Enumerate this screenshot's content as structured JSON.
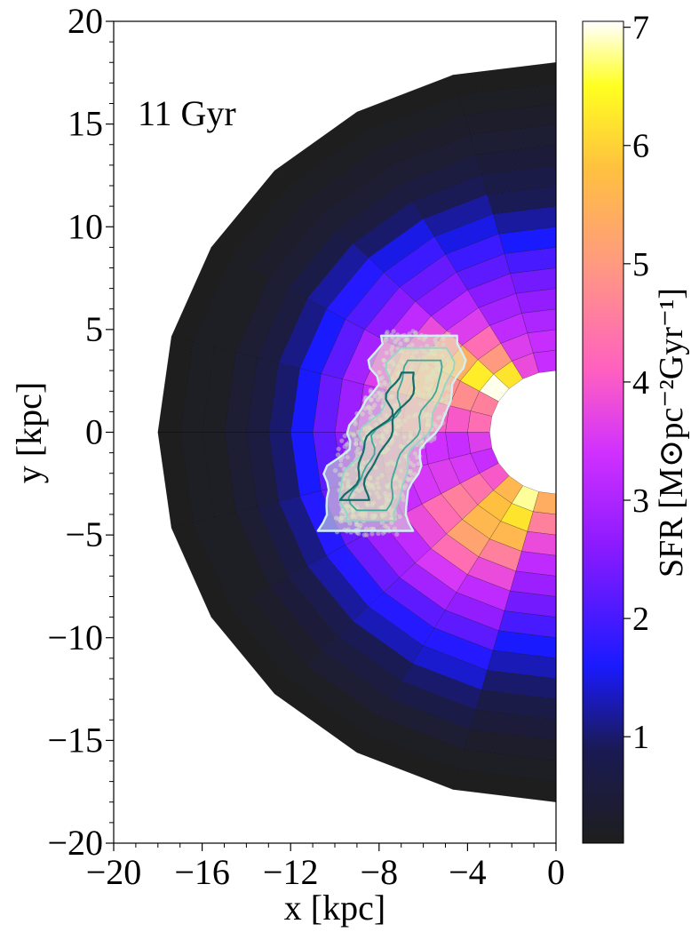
{
  "chart_data": {
    "type": "heatmap",
    "projection": "polar half-disc (left half), radial bins x azimuthal bins",
    "annotation": "11 Gyr",
    "xlabel": "x [kpc]",
    "ylabel": "y [kpc]",
    "xlim": [
      -20,
      0
    ],
    "ylim": [
      -20,
      20
    ],
    "xticks": [
      -20,
      -16,
      -12,
      -8,
      -4,
      0
    ],
    "xtick_labels": [
      "−20",
      "−16",
      "−12",
      "−8",
      "−4",
      "0"
    ],
    "yticks": [
      -20,
      -15,
      -10,
      -5,
      0,
      5,
      10,
      15,
      20
    ],
    "ytick_labels": [
      "−20",
      "−15",
      "−10",
      "−5",
      "0",
      "5",
      "10",
      "15",
      "20"
    ],
    "colorbar": {
      "label": "SFR [M⊙pc⁻²Gyr⁻¹]",
      "colormap": "gnuplot2-like",
      "range": [
        0.1,
        7.05
      ],
      "ticks": [
        1,
        2,
        3,
        4,
        5,
        6,
        7
      ],
      "tick_labels": [
        "1",
        "2",
        "3",
        "4",
        "5",
        "6",
        "7"
      ],
      "stops": [
        {
          "v": 0.1,
          "color": "#1e1e1e"
        },
        {
          "v": 0.9,
          "color": "#1a1a55"
        },
        {
          "v": 1.6,
          "color": "#1a1aff"
        },
        {
          "v": 2.6,
          "color": "#8a1aff"
        },
        {
          "v": 3.4,
          "color": "#d030ff"
        },
        {
          "v": 4.1,
          "color": "#ff60c0"
        },
        {
          "v": 5.0,
          "color": "#ff9a80"
        },
        {
          "v": 5.8,
          "color": "#ffc040"
        },
        {
          "v": 6.5,
          "color": "#ffff20"
        },
        {
          "v": 7.05,
          "color": "#ffffff"
        }
      ]
    },
    "radial_bin_edges_kpc": [
      3,
      4,
      5,
      6,
      7,
      8,
      9,
      10,
      11,
      12,
      13,
      14,
      15,
      16,
      17,
      18
    ],
    "azimuth_range_deg": [
      90,
      270
    ],
    "azimuth_bins": 12,
    "azimuth_note": "rows run azimuthally from the top (90 deg, +y axis) through 180 deg (-x axis) to the bottom (270 deg, -y axis)",
    "sfr_grid": [
      [
        3.3,
        3.8,
        6.2,
        7.0,
        4.6,
        4.3,
        3.6,
        3.3,
        4.0,
        5.6,
        6.8,
        5.4
      ],
      [
        3.3,
        3.6,
        5.0,
        6.3,
        4.8,
        4.0,
        3.3,
        3.5,
        4.4,
        5.8,
        6.2,
        4.6
      ],
      [
        3.0,
        3.2,
        4.3,
        5.4,
        4.8,
        4.0,
        3.4,
        3.6,
        4.6,
        5.6,
        5.6,
        3.8
      ],
      [
        2.7,
        2.9,
        3.6,
        4.6,
        4.6,
        3.8,
        3.4,
        3.5,
        4.3,
        5.2,
        4.6,
        3.2
      ],
      [
        2.4,
        2.6,
        3.1,
        3.8,
        4.2,
        3.6,
        3.3,
        3.3,
        3.8,
        4.3,
        3.8,
        2.8
      ],
      [
        2.0,
        2.2,
        2.6,
        3.2,
        3.6,
        3.2,
        3.0,
        3.0,
        3.2,
        3.5,
        3.2,
        2.4
      ],
      [
        1.6,
        1.9,
        2.3,
        2.6,
        2.9,
        2.8,
        2.6,
        2.7,
        2.8,
        2.9,
        2.7,
        2.0
      ],
      [
        1.2,
        1.5,
        1.9,
        2.1,
        2.2,
        2.3,
        2.2,
        2.3,
        2.3,
        2.2,
        2.2,
        1.6
      ],
      [
        0.9,
        1.2,
        1.5,
        1.7,
        1.6,
        1.6,
        1.6,
        1.7,
        1.7,
        1.7,
        1.7,
        1.3
      ],
      [
        0.7,
        0.9,
        1.0,
        1.2,
        1.1,
        1.0,
        1.0,
        1.1,
        1.2,
        1.3,
        1.4,
        1.0
      ],
      [
        0.5,
        0.6,
        0.6,
        0.7,
        0.6,
        0.6,
        0.6,
        0.7,
        0.8,
        0.9,
        1.0,
        0.7
      ],
      [
        0.4,
        0.4,
        0.4,
        0.4,
        0.4,
        0.4,
        0.4,
        0.4,
        0.5,
        0.6,
        0.7,
        0.5
      ],
      [
        0.3,
        0.3,
        0.3,
        0.3,
        0.2,
        0.2,
        0.2,
        0.2,
        0.3,
        0.4,
        0.4,
        0.3
      ],
      [
        0.2,
        0.2,
        0.2,
        0.2,
        0.2,
        0.2,
        0.2,
        0.2,
        0.2,
        0.2,
        0.2,
        0.2
      ],
      [
        0.1,
        0.1,
        0.1,
        0.1,
        0.1,
        0.1,
        0.1,
        0.1,
        0.1,
        0.1,
        0.1,
        0.1
      ]
    ],
    "overlay": {
      "description": "observed star-forming region: hexbin density points with nested contours",
      "x_range": [
        -10,
        -4.8
      ],
      "y_range": [
        -5,
        5
      ],
      "contour_colors": [
        "#d0f0f4",
        "#8fd8c8",
        "#3aa89a",
        "#146b6a"
      ],
      "point_color": "#c8c8c8"
    }
  }
}
